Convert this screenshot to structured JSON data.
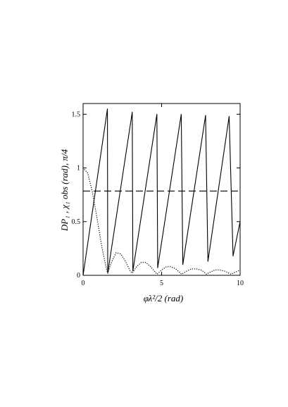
{
  "chart_data": {
    "type": "line",
    "xlabel": "φλ²/2 (rad)",
    "ylabel": "DP₁ , χ₁ obs (rad), π/4",
    "xlim": [
      0,
      10
    ],
    "ylim": [
      0,
      1.6
    ],
    "grid": false,
    "x_ticks": [
      "0",
      "5",
      "10"
    ],
    "y_ticks": [
      "0",
      "0.5",
      "1",
      "1.5"
    ],
    "series": [
      {
        "style": "solid",
        "description_key": "chi_obs",
        "x": [
          0,
          1.55,
          1.57,
          3.13,
          3.17,
          4.7,
          4.75,
          6.25,
          6.35,
          7.8,
          7.95,
          9.3,
          9.55,
          10
        ],
        "y": [
          0,
          1.55,
          0.02,
          1.52,
          0.04,
          1.5,
          0.07,
          1.5,
          0.1,
          1.49,
          0.13,
          1.48,
          0.18,
          0.5
        ]
      },
      {
        "style": "dotted",
        "description_key": "DP1",
        "x": [
          0,
          0.3,
          0.6,
          0.9,
          1.2,
          1.5,
          1.57,
          1.8,
          2.1,
          2.4,
          2.7,
          3.0,
          3.14,
          3.4,
          3.7,
          4.0,
          4.3,
          4.6,
          4.71,
          5.0,
          5.3,
          5.6,
          5.9,
          6.2,
          6.28,
          6.6,
          6.9,
          7.2,
          7.5,
          7.8,
          7.85,
          8.1,
          8.4,
          8.7,
          9.0,
          9.3,
          9.42,
          9.7,
          10
        ],
        "y": [
          1.0,
          0.95,
          0.77,
          0.52,
          0.26,
          0.05,
          0.02,
          0.12,
          0.21,
          0.2,
          0.13,
          0.04,
          0.02,
          0.08,
          0.12,
          0.12,
          0.08,
          0.03,
          0.01,
          0.05,
          0.08,
          0.08,
          0.06,
          0.02,
          0.01,
          0.04,
          0.06,
          0.06,
          0.05,
          0.02,
          0.01,
          0.03,
          0.05,
          0.05,
          0.04,
          0.02,
          0.01,
          0.03,
          0.05
        ]
      },
      {
        "style": "dashed",
        "description_key": "pi_over_4",
        "x": [
          0,
          10
        ],
        "y": [
          0.785,
          0.785
        ]
      }
    ]
  }
}
